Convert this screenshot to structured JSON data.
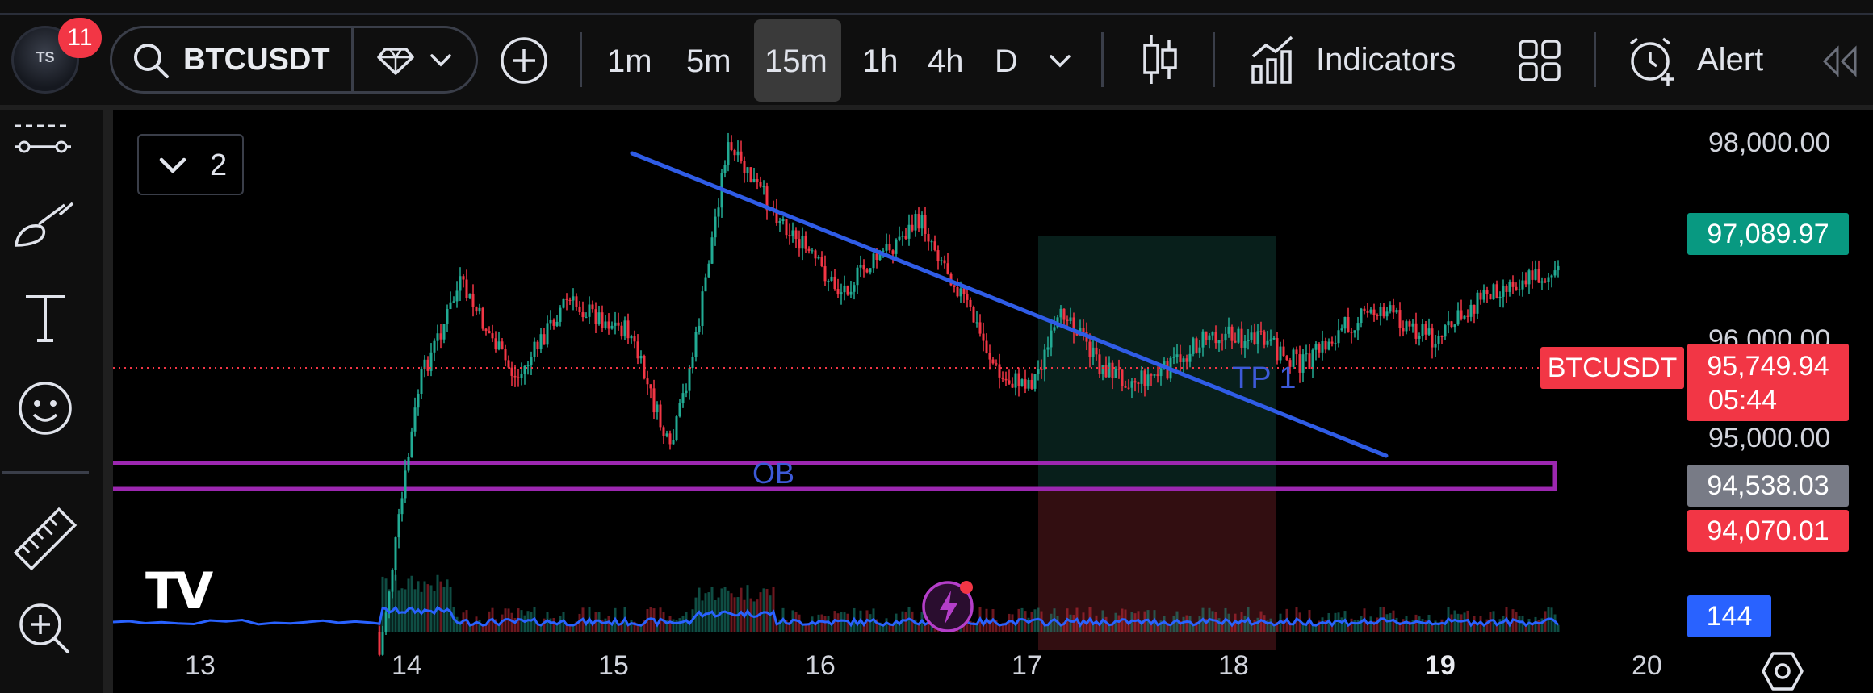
{
  "toolbar": {
    "avatar_initials": "TS",
    "notification_count": "11",
    "symbol": "BTCUSDT",
    "timeframes": [
      "1m",
      "5m",
      "15m",
      "1h",
      "4h",
      "D"
    ],
    "active_timeframe": "15m",
    "indicators_label": "Indicators",
    "alert_label": "Alert"
  },
  "chart": {
    "pane_count": "2",
    "price_scale": [
      "98,000.00",
      "96,000.00",
      "95,000.00"
    ],
    "tags": {
      "upper": "97,089.97",
      "symbol": "BTCUSDT",
      "last_price": "95,749.94",
      "countdown": "05:44",
      "mid": "94,538.03",
      "lower": "94,070.01",
      "volume": "144"
    },
    "date_labels": [
      "13",
      "14",
      "15",
      "16",
      "17",
      "18",
      "19",
      "20"
    ],
    "annotations": {
      "ob": "OB",
      "tp": "TP 1"
    },
    "colors": {
      "up": "#22ab94",
      "down": "#f23645",
      "trendline": "#2f5ce6",
      "ob_box": "#9c27b0",
      "volume_ma": "#2962ff",
      "tag_green": "#089981",
      "tag_red": "#f23645",
      "tag_gray": "#787b86",
      "tag_blue": "#2962ff"
    }
  }
}
